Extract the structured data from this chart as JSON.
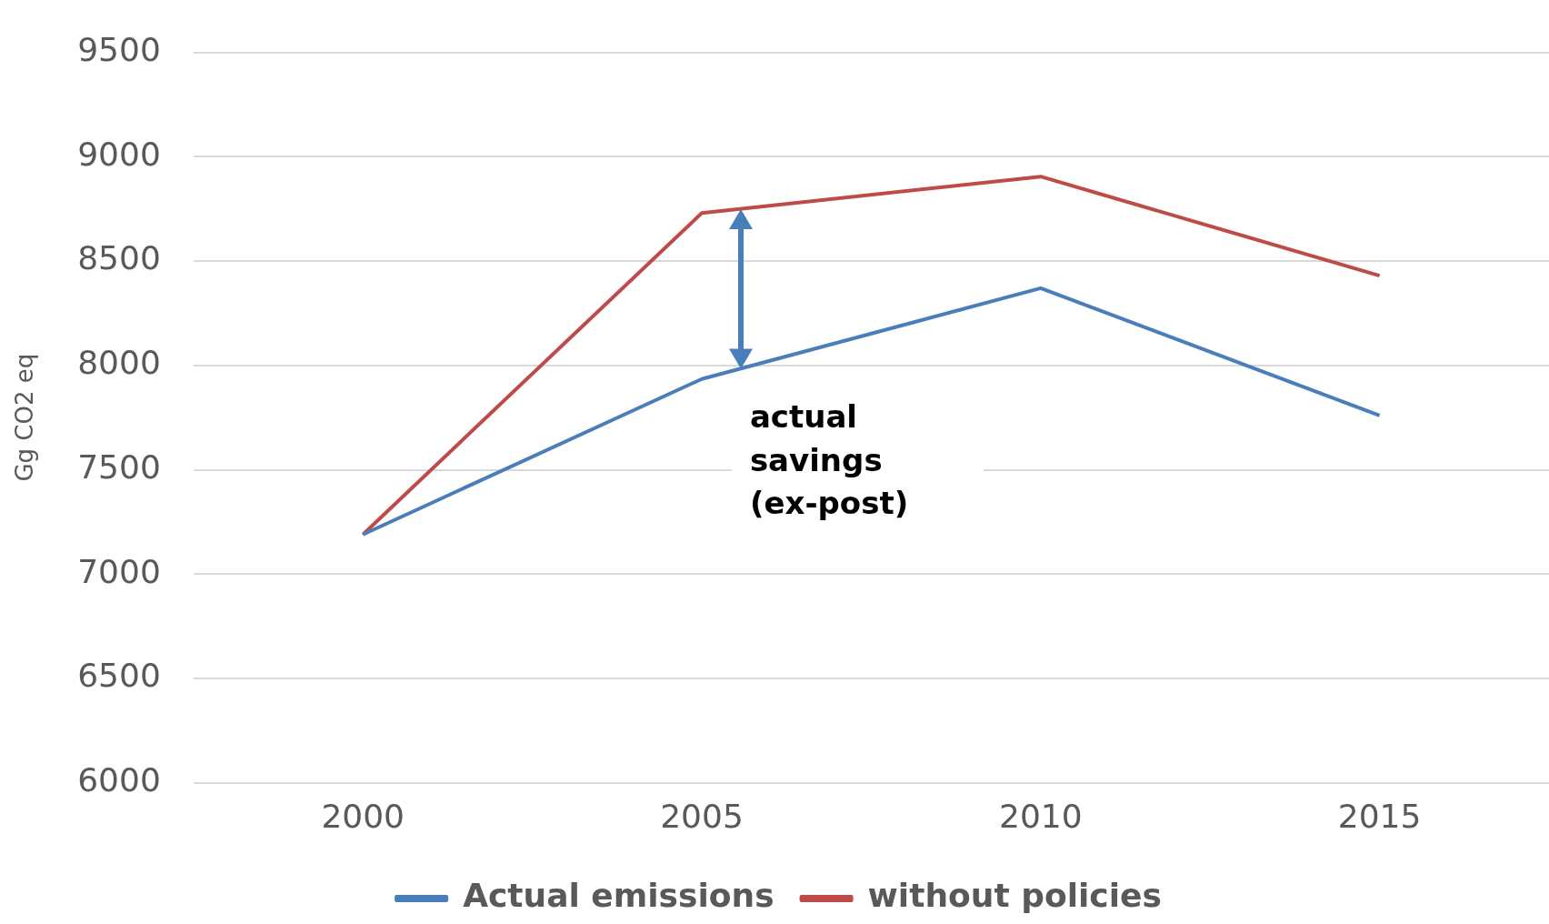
{
  "chart_data": {
    "type": "line",
    "ylabel": "Gg CO2 eq",
    "categories": [
      "2000",
      "2005",
      "2010",
      "2015"
    ],
    "series": [
      {
        "name": "Actual emissions",
        "color": "#4a7ebb",
        "values": [
          7190,
          7935,
          8370,
          7760
        ]
      },
      {
        "name": "without policies",
        "color": "#be4b48",
        "values": [
          7190,
          8730,
          8905,
          8430
        ]
      }
    ],
    "ylim": [
      6000,
      9500
    ],
    "yticks": [
      6000,
      6500,
      7000,
      7500,
      8000,
      8500,
      9000,
      9500
    ],
    "grid": "y",
    "legend": "bottom",
    "marker": "none",
    "line_style": "solid",
    "annotations": [
      "actual savings (ex-post)"
    ]
  }
}
